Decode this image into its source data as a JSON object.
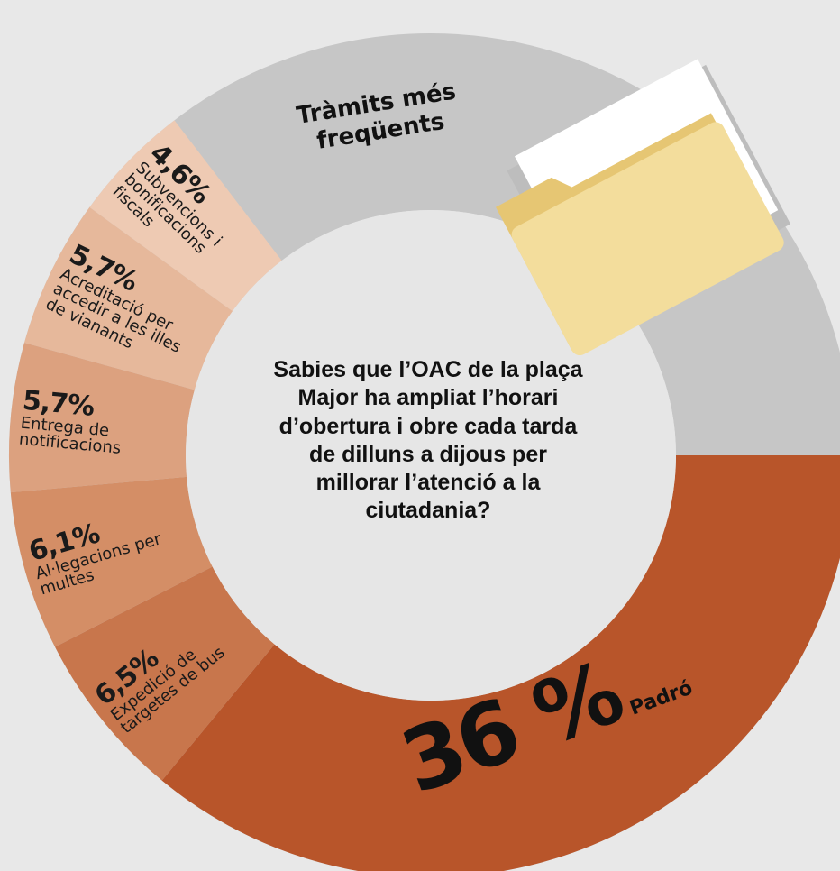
{
  "chart_data": {
    "type": "pie",
    "donut": true,
    "title": "Tràmits més freqüents",
    "center_text": "Sabies que l’OAC de la plaça Major ha ampliat l’horari d’obertura i obre cada tarda de dilluns a dijous per millorar l’atenció a la ciutadania?",
    "categories": [
      "Padró",
      "Expedició de targetes de bus",
      "Al·legacions per multes",
      "Entrega de notificacions",
      "Acreditació per accedir a les illes de vianants",
      "Subvencions i bonificacions fiscals"
    ],
    "values": [
      36,
      6.5,
      6.1,
      5.7,
      5.7,
      4.6
    ],
    "value_labels": [
      "36 %",
      "6,5%",
      "6,1%",
      "5,7%",
      "5,7%",
      "4,6%"
    ],
    "colors": [
      "#b8552a",
      "#c8764c",
      "#d48e66",
      "#dca17f",
      "#e6b89b",
      "#eecab3"
    ],
    "other_color": "#c6c6c6"
  }
}
